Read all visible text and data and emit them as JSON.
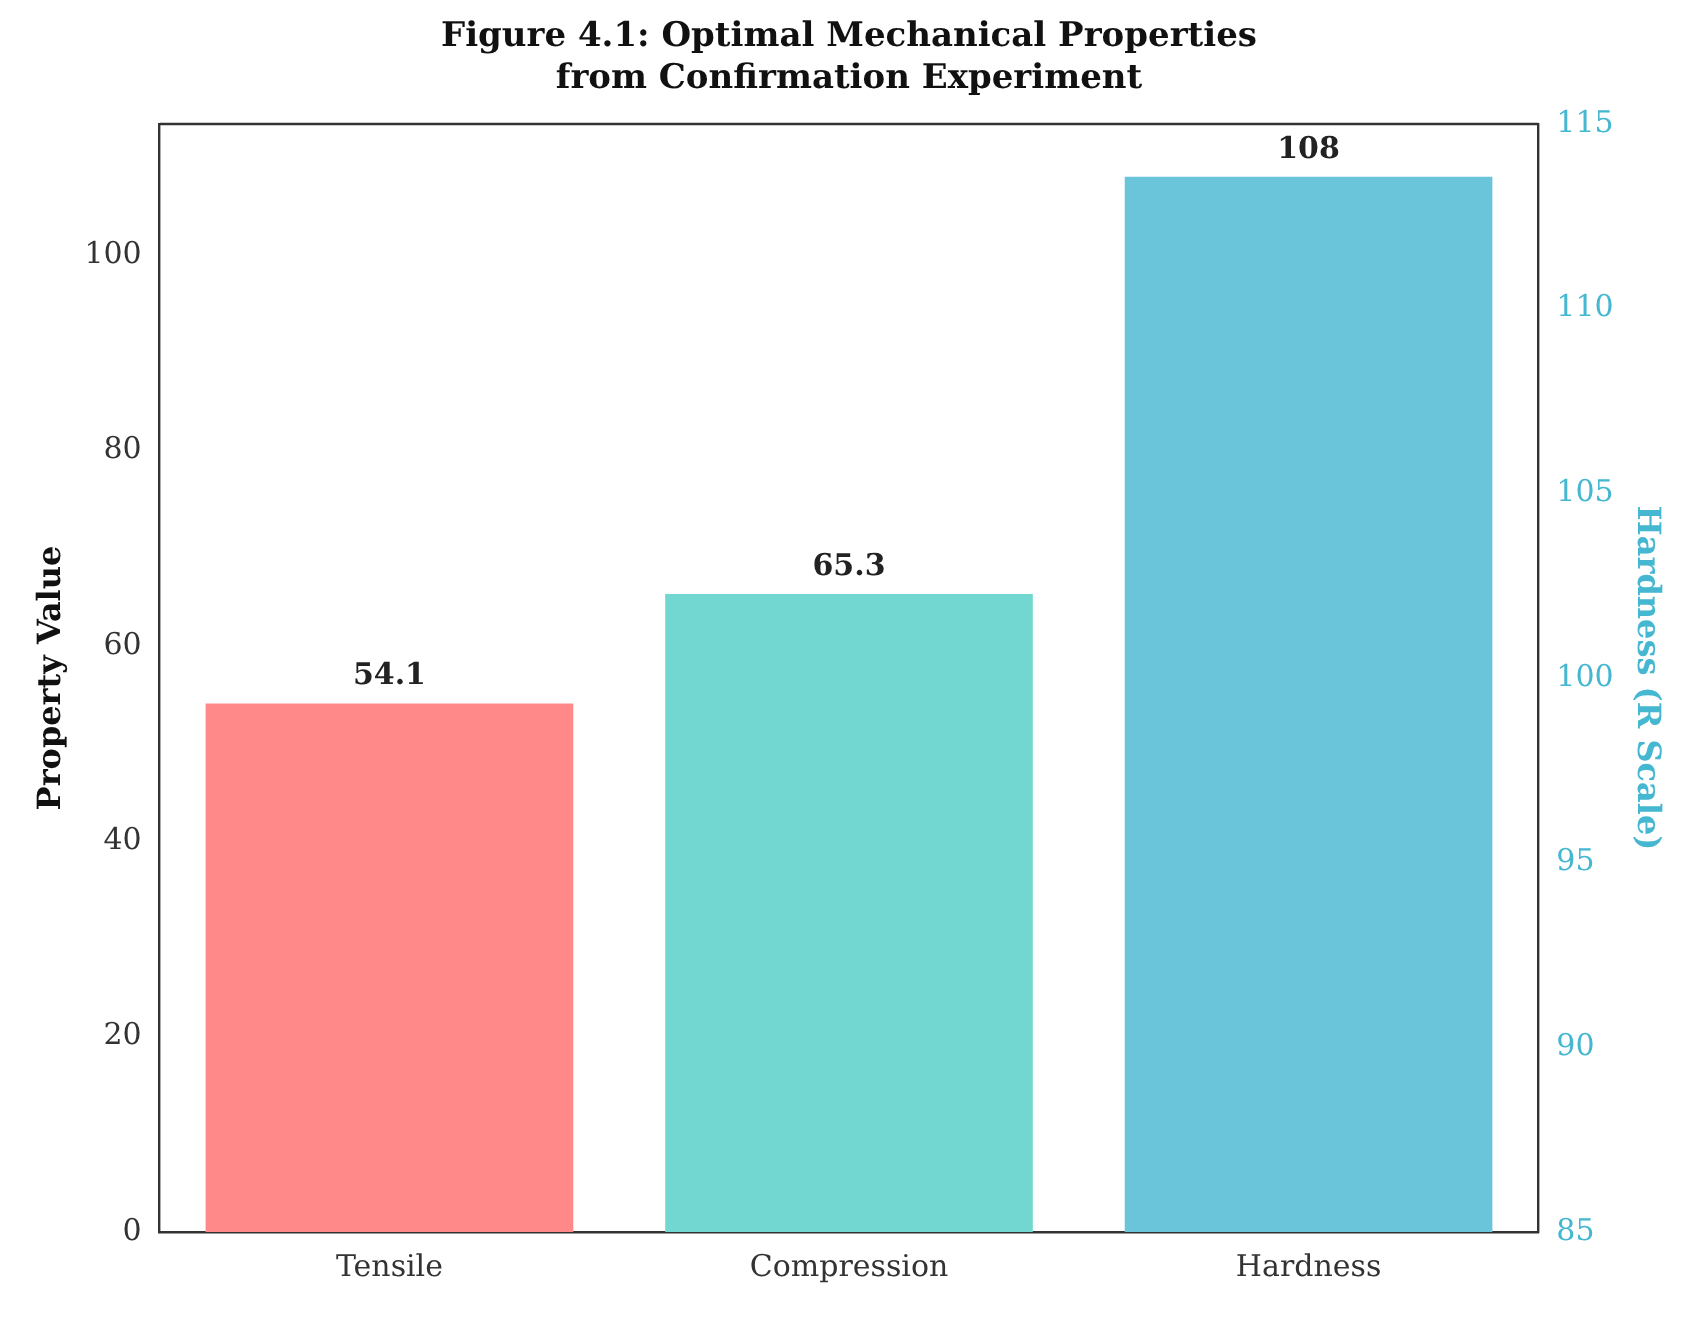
{
  "chart_data": {
    "type": "bar",
    "title": "Figure 4.1: Optimal Mechanical Properties from Confirmation Experiment",
    "categories": [
      "Tensile",
      "Compression",
      "Hardness"
    ],
    "values": [
      54.1,
      65.3,
      108
    ],
    "colors": [
      "#ff8989",
      "#71d7d0",
      "#6ac5da"
    ],
    "ylabel": "Property Value",
    "y2label": "Hardness (R Scale)",
    "ylim": [
      0,
      113.4
    ],
    "yticks": [
      0,
      20,
      40,
      60,
      80,
      100
    ],
    "y2lim": [
      85,
      115
    ],
    "y2ticks": [
      85,
      90,
      95,
      100,
      105,
      110,
      115
    ],
    "data_labels": true,
    "grid": false,
    "legend": false
  }
}
